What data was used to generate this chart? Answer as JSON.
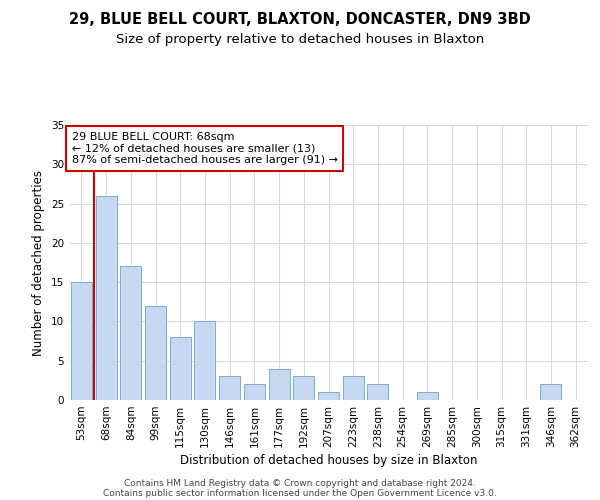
{
  "title1": "29, BLUE BELL COURT, BLAXTON, DONCASTER, DN9 3BD",
  "title2": "Size of property relative to detached houses in Blaxton",
  "xlabel": "Distribution of detached houses by size in Blaxton",
  "ylabel": "Number of detached properties",
  "categories": [
    "53sqm",
    "68sqm",
    "84sqm",
    "99sqm",
    "115sqm",
    "130sqm",
    "146sqm",
    "161sqm",
    "177sqm",
    "192sqm",
    "207sqm",
    "223sqm",
    "238sqm",
    "254sqm",
    "269sqm",
    "285sqm",
    "300sqm",
    "315sqm",
    "331sqm",
    "346sqm",
    "362sqm"
  ],
  "values": [
    15,
    26,
    17,
    12,
    8,
    10,
    3,
    2,
    4,
    3,
    1,
    3,
    2,
    0,
    1,
    0,
    0,
    0,
    0,
    2,
    0
  ],
  "bar_color": "#c5d8f0",
  "bar_edge_color": "#7bafd4",
  "vline_index": 1,
  "vline_color": "#cc0000",
  "annotation_line1": "29 BLUE BELL COURT: 68sqm",
  "annotation_line2": "← 12% of detached houses are smaller (13)",
  "annotation_line3": "87% of semi-detached houses are larger (91) →",
  "annotation_box_color": "#ffffff",
  "annotation_box_edge": "#cc0000",
  "ylim": [
    0,
    35
  ],
  "yticks": [
    0,
    5,
    10,
    15,
    20,
    25,
    30,
    35
  ],
  "footer1": "Contains HM Land Registry data © Crown copyright and database right 2024.",
  "footer2": "Contains public sector information licensed under the Open Government Licence v3.0.",
  "bg_color": "#ffffff",
  "grid_color": "#d0d8e8",
  "title1_fontsize": 10.5,
  "title2_fontsize": 9.5,
  "xlabel_fontsize": 8.5,
  "ylabel_fontsize": 8.5,
  "tick_fontsize": 7.5,
  "annotation_fontsize": 8,
  "footer_fontsize": 6.5
}
